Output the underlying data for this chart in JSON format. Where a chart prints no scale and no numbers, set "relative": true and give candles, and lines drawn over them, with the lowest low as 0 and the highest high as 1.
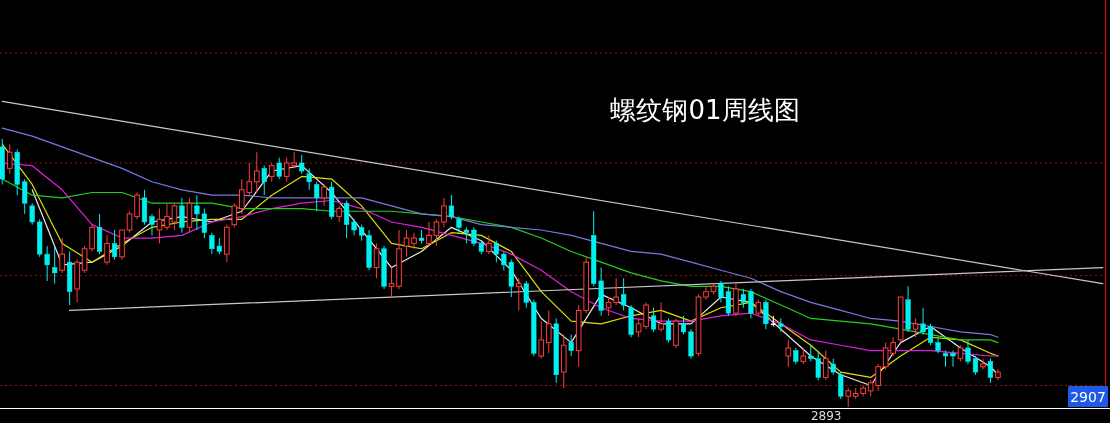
{
  "chart_data": {
    "type": "candlestick",
    "title": "螺纹钢01周线图",
    "relative": true,
    "categories": [
      null,
      null,
      null,
      null,
      null,
      null,
      null,
      null,
      null,
      null,
      null,
      null,
      null,
      null,
      null,
      null,
      null,
      null,
      null,
      null,
      null,
      null,
      null,
      null,
      null,
      null,
      null,
      null,
      null,
      null,
      null,
      null,
      null,
      null,
      null,
      null,
      null,
      null,
      null,
      null,
      null,
      null,
      null,
      null,
      null,
      null,
      null,
      null,
      null,
      null,
      null,
      null,
      null,
      null,
      null,
      null,
      null,
      null,
      null,
      null,
      null,
      null,
      null,
      null,
      null,
      null,
      null,
      null,
      null,
      null,
      null,
      null,
      null,
      null,
      null,
      null,
      null,
      null,
      null,
      null,
      null,
      null,
      null,
      null,
      null,
      null,
      null,
      null,
      null,
      null,
      null,
      null,
      null,
      null,
      null,
      null,
      null,
      null,
      null,
      null,
      null,
      null,
      null,
      null,
      null,
      null,
      null,
      null,
      null,
      null,
      null,
      null,
      null,
      null,
      null,
      null,
      null,
      null,
      null,
      null,
      null,
      null,
      null,
      null,
      null,
      null,
      null,
      null,
      null,
      null,
      null,
      null,
      null,
      null,
      null,
      null,
      null,
      null,
      null,
      null,
      null,
      null,
      null,
      null,
      null,
      null,
      null,
      null
    ],
    "ohlc": [
      [
        0.97,
        1.0,
        0.83,
        0.85
      ],
      [
        0.89,
        0.98,
        0.87,
        0.95
      ],
      [
        0.95,
        0.96,
        0.79,
        0.83
      ],
      [
        0.84,
        0.85,
        0.72,
        0.76
      ],
      [
        0.75,
        0.76,
        0.68,
        0.69
      ],
      [
        0.69,
        0.7,
        0.56,
        0.57
      ],
      [
        0.57,
        0.6,
        0.47,
        0.53
      ],
      [
        0.52,
        0.6,
        0.46,
        0.5
      ],
      [
        0.51,
        0.63,
        0.5,
        0.57
      ],
      [
        0.54,
        0.58,
        0.38,
        0.43
      ],
      [
        0.44,
        0.55,
        0.39,
        0.54
      ],
      [
        0.51,
        0.6,
        0.5,
        0.59
      ],
      [
        0.59,
        0.68,
        0.58,
        0.67
      ],
      [
        0.67,
        0.72,
        0.57,
        0.58
      ],
      [
        0.54,
        0.64,
        0.53,
        0.61
      ],
      [
        0.61,
        0.66,
        0.55,
        0.56
      ],
      [
        0.56,
        0.66,
        0.55,
        0.66
      ],
      [
        0.66,
        0.73,
        0.65,
        0.72
      ],
      [
        0.71,
        0.8,
        0.7,
        0.79
      ],
      [
        0.78,
        0.81,
        0.68,
        0.69
      ],
      [
        0.71,
        0.72,
        0.64,
        0.68
      ],
      [
        0.66,
        0.74,
        0.61,
        0.7
      ],
      [
        0.67,
        0.76,
        0.66,
        0.71
      ],
      [
        0.69,
        0.76,
        0.66,
        0.75
      ],
      [
        0.75,
        0.78,
        0.65,
        0.67
      ],
      [
        0.67,
        0.78,
        0.65,
        0.76
      ],
      [
        0.75,
        0.79,
        0.66,
        0.72
      ],
      [
        0.72,
        0.74,
        0.63,
        0.65
      ],
      [
        0.64,
        0.65,
        0.57,
        0.59
      ],
      [
        0.6,
        0.63,
        0.57,
        0.58
      ],
      [
        0.57,
        0.68,
        0.54,
        0.67
      ],
      [
        0.68,
        0.76,
        0.67,
        0.75
      ],
      [
        0.74,
        0.85,
        0.72,
        0.81
      ],
      [
        0.8,
        0.91,
        0.79,
        0.84
      ],
      [
        0.84,
        0.95,
        0.8,
        0.88
      ],
      [
        0.89,
        0.9,
        0.79,
        0.84
      ],
      [
        0.86,
        0.91,
        0.84,
        0.9
      ],
      [
        0.91,
        0.93,
        0.85,
        0.86
      ],
      [
        0.86,
        0.93,
        0.84,
        0.91
      ],
      [
        0.9,
        0.95,
        0.89,
        0.91
      ],
      [
        0.91,
        0.94,
        0.87,
        0.88
      ],
      [
        0.87,
        0.89,
        0.81,
        0.84
      ],
      [
        0.83,
        0.84,
        0.73,
        0.78
      ],
      [
        0.78,
        0.83,
        0.75,
        0.82
      ],
      [
        0.82,
        0.84,
        0.7,
        0.71
      ],
      [
        0.71,
        0.75,
        0.69,
        0.74
      ],
      [
        0.76,
        0.77,
        0.63,
        0.68
      ],
      [
        0.69,
        0.7,
        0.64,
        0.66
      ],
      [
        0.67,
        0.68,
        0.62,
        0.64
      ],
      [
        0.64,
        0.66,
        0.51,
        0.52
      ],
      [
        0.52,
        0.61,
        0.48,
        0.59
      ],
      [
        0.59,
        0.6,
        0.44,
        0.45
      ],
      [
        0.45,
        0.52,
        0.41,
        0.46
      ],
      [
        0.45,
        0.66,
        0.44,
        0.59
      ],
      [
        0.6,
        0.66,
        0.56,
        0.63
      ],
      [
        0.61,
        0.65,
        0.59,
        0.63
      ],
      [
        0.63,
        0.66,
        0.61,
        0.62
      ],
      [
        0.61,
        0.69,
        0.6,
        0.64
      ],
      [
        0.64,
        0.7,
        0.6,
        0.69
      ],
      [
        0.69,
        0.78,
        0.67,
        0.75
      ],
      [
        0.75,
        0.79,
        0.7,
        0.71
      ],
      [
        0.7,
        0.71,
        0.65,
        0.67
      ],
      [
        0.66,
        0.67,
        0.61,
        0.65
      ],
      [
        0.66,
        0.67,
        0.6,
        0.61
      ],
      [
        0.61,
        0.62,
        0.57,
        0.58
      ],
      [
        0.58,
        0.64,
        0.57,
        0.61
      ],
      [
        0.61,
        0.62,
        0.54,
        0.57
      ],
      [
        0.57,
        0.58,
        0.51,
        0.53
      ],
      [
        0.54,
        0.55,
        0.41,
        0.45
      ],
      [
        0.45,
        0.48,
        0.36,
        0.46
      ],
      [
        0.46,
        0.47,
        0.37,
        0.39
      ],
      [
        0.39,
        0.4,
        0.19,
        0.2
      ],
      [
        0.19,
        0.32,
        0.18,
        0.25
      ],
      [
        0.24,
        0.36,
        0.2,
        0.31
      ],
      [
        0.31,
        0.33,
        0.09,
        0.12
      ],
      [
        0.13,
        0.27,
        0.07,
        0.23
      ],
      [
        0.24,
        0.27,
        0.19,
        0.21
      ],
      [
        0.21,
        0.38,
        0.15,
        0.36
      ],
      [
        0.36,
        0.56,
        0.35,
        0.54
      ],
      [
        0.64,
        0.73,
        0.45,
        0.46
      ],
      [
        0.47,
        0.52,
        0.34,
        0.36
      ],
      [
        0.37,
        0.41,
        0.34,
        0.39
      ],
      [
        0.39,
        0.48,
        0.38,
        0.41
      ],
      [
        0.42,
        0.48,
        0.36,
        0.38
      ],
      [
        0.37,
        0.38,
        0.26,
        0.27
      ],
      [
        0.28,
        0.33,
        0.26,
        0.31
      ],
      [
        0.3,
        0.39,
        0.29,
        0.38
      ],
      [
        0.34,
        0.37,
        0.28,
        0.29
      ],
      [
        0.29,
        0.39,
        0.28,
        0.31
      ],
      [
        0.32,
        0.33,
        0.24,
        0.25
      ],
      [
        0.23,
        0.33,
        0.22,
        0.32
      ],
      [
        0.31,
        0.34,
        0.27,
        0.28
      ],
      [
        0.28,
        0.29,
        0.18,
        0.19
      ],
      [
        0.2,
        0.42,
        0.19,
        0.41
      ],
      [
        0.41,
        0.45,
        0.4,
        0.43
      ],
      [
        0.43,
        0.46,
        0.42,
        0.45
      ],
      [
        0.46,
        0.47,
        0.39,
        0.41
      ],
      [
        0.43,
        0.45,
        0.34,
        0.35
      ],
      [
        0.35,
        0.46,
        0.34,
        0.44
      ],
      [
        0.42,
        0.44,
        0.37,
        0.39
      ],
      [
        0.43,
        0.44,
        0.33,
        0.35
      ],
      [
        0.35,
        0.4,
        0.34,
        0.39
      ],
      [
        0.39,
        0.4,
        0.29,
        0.31
      ],
      [
        0.31,
        0.34,
        0.3,
        0.31
      ],
      [
        0.31,
        0.33,
        0.28,
        0.3
      ],
      [
        0.19,
        0.25,
        0.15,
        0.22
      ],
      [
        0.21,
        0.22,
        0.16,
        0.17
      ],
      [
        0.17,
        0.22,
        0.16,
        0.19
      ],
      [
        0.19,
        0.23,
        0.17,
        0.18
      ],
      [
        0.18,
        0.21,
        0.1,
        0.11
      ],
      [
        0.11,
        0.21,
        0.1,
        0.18
      ],
      [
        0.16,
        0.18,
        0.12,
        0.13
      ],
      [
        0.12,
        0.13,
        0.03,
        0.04
      ],
      [
        0.04,
        0.07,
        0,
        0.06
      ],
      [
        0.04,
        0.07,
        0.03,
        0.05
      ],
      [
        0.05,
        0.08,
        0.04,
        0.07
      ],
      [
        0.06,
        0.1,
        0.04,
        0.09
      ],
      [
        0.08,
        0.16,
        0.06,
        0.15
      ],
      [
        0.15,
        0.24,
        0.14,
        0.22
      ],
      [
        0.2,
        0.26,
        0.19,
        0.24
      ],
      [
        0.25,
        0.41,
        0.24,
        0.41
      ],
      [
        0.4,
        0.45,
        0.28,
        0.29
      ],
      [
        0.29,
        0.33,
        0.26,
        0.31
      ],
      [
        0.31,
        0.37,
        0.27,
        0.28
      ],
      [
        0.3,
        0.31,
        0.23,
        0.24
      ],
      [
        0.24,
        0.26,
        0.2,
        0.21
      ],
      [
        0.2,
        0.21,
        0.15,
        0.19
      ],
      [
        0.2,
        0.21,
        0.15,
        0.19
      ],
      [
        0.18,
        0.23,
        0.17,
        0.22
      ],
      [
        0.22,
        0.25,
        0.16,
        0.17
      ],
      [
        0.18,
        0.19,
        0.12,
        0.13
      ],
      [
        0.15,
        0.18,
        0.14,
        0.16
      ],
      [
        0.17,
        0.18,
        0.09,
        0.11
      ],
      [
        0.11,
        0.14,
        0.1,
        0.13
      ],
      null,
      null,
      null,
      null,
      null,
      null,
      null,
      null,
      null,
      null,
      null,
      null,
      null,
      null
    ],
    "series": [
      {
        "type": "line",
        "color": "#e8e8e8",
        "values": [
          null,
          null,
          null,
          null,
          0.81,
          null,
          null,
          null,
          0.53,
          null,
          null,
          null,
          0.54,
          null,
          null,
          null,
          0.6,
          null,
          null,
          null,
          0.69,
          null,
          null,
          null,
          0.71,
          null,
          null,
          null,
          0.69,
          null,
          null,
          null,
          0.73,
          null,
          null,
          null,
          0.88,
          null,
          null,
          null,
          0.9,
          null,
          null,
          null,
          0.8,
          null,
          null,
          null,
          0.66,
          null,
          null,
          null,
          0.52,
          null,
          null,
          null,
          0.58,
          null,
          null,
          null,
          0.67,
          null,
          null,
          null,
          0.62,
          null,
          null,
          null,
          0.51,
          null,
          null,
          null,
          0.33,
          null,
          null,
          null,
          0.24,
          null,
          null,
          null,
          0.42,
          null,
          null,
          null,
          0.37,
          null,
          null,
          null,
          0.31,
          null,
          null,
          null,
          0.31,
          null,
          null,
          null,
          0.41,
          null,
          null,
          null,
          0.39,
          null,
          null,
          null,
          0.29,
          null,
          null,
          null,
          0.19,
          null,
          null,
          null,
          0.12,
          null,
          null,
          null,
          0.08,
          null,
          null,
          null,
          0.24,
          null,
          null,
          null,
          0.3,
          null,
          null,
          null,
          0.22,
          null,
          null,
          null,
          0.15,
          0.12,
          null,
          null,
          null,
          null,
          null,
          null,
          null,
          null,
          null,
          null,
          null,
          null,
          null,
          null
        ]
      },
      {
        "type": "line",
        "color": "#e0e000",
        "values": [
          0.98,
          null,
          null,
          null,
          0.83,
          null,
          null,
          null,
          0.61,
          null,
          null,
          null,
          0.54,
          null,
          null,
          null,
          0.61,
          null,
          null,
          null,
          0.67,
          null,
          null,
          null,
          0.69,
          null,
          null,
          null,
          0.7,
          null,
          null,
          null,
          0.7,
          null,
          null,
          null,
          0.79,
          null,
          null,
          null,
          0.86,
          null,
          null,
          null,
          0.85,
          null,
          null,
          null,
          0.75,
          null,
          null,
          null,
          0.61,
          null,
          null,
          null,
          0.59,
          null,
          null,
          null,
          0.65,
          null,
          null,
          null,
          0.64,
          null,
          null,
          null,
          0.58,
          null,
          null,
          null,
          0.43,
          null,
          null,
          null,
          0.32,
          null,
          null,
          null,
          0.31,
          null,
          null,
          null,
          0.34,
          null,
          null,
          null,
          0.36,
          null,
          null,
          null,
          0.32,
          null,
          null,
          null,
          0.37,
          null,
          null,
          null,
          0.39,
          null,
          null,
          null,
          0.31,
          null,
          null,
          null,
          0.23,
          null,
          null,
          null,
          0.13,
          null,
          null,
          null,
          0.11,
          null,
          null,
          null,
          0.19,
          null,
          null,
          null,
          0.26,
          null,
          null,
          null,
          0.25,
          null,
          null,
          null,
          0.2,
          0.19,
          null,
          null,
          null,
          null,
          null,
          null,
          null,
          null,
          null,
          null,
          null,
          null,
          null,
          null
        ]
      },
      {
        "type": "line",
        "color": "#e020e0",
        "values": [
          0.91,
          null,
          null,
          null,
          0.9,
          null,
          null,
          null,
          0.81,
          null,
          null,
          null,
          0.68,
          null,
          null,
          null,
          0.63,
          null,
          null,
          null,
          0.63,
          null,
          null,
          null,
          0.64,
          null,
          null,
          null,
          0.69,
          null,
          null,
          null,
          0.71,
          null,
          null,
          null,
          0.74,
          null,
          null,
          null,
          0.76,
          null,
          null,
          null,
          0.77,
          null,
          null,
          null,
          0.74,
          null,
          null,
          null,
          0.69,
          null,
          null,
          null,
          0.67,
          null,
          null,
          null,
          0.64,
          null,
          null,
          null,
          0.61,
          null,
          null,
          null,
          0.57,
          null,
          null,
          null,
          0.51,
          null,
          null,
          null,
          0.43,
          null,
          null,
          null,
          0.37,
          null,
          null,
          null,
          0.33,
          null,
          null,
          null,
          0.32,
          null,
          null,
          null,
          0.32,
          null,
          null,
          null,
          0.34,
          null,
          null,
          null,
          0.35,
          null,
          null,
          null,
          0.31,
          null,
          null,
          null,
          0.25,
          null,
          null,
          null,
          0.23,
          null,
          null,
          null,
          0.21,
          null,
          null,
          null,
          0.21,
          null,
          null,
          null,
          0.21,
          null,
          null,
          null,
          0.2,
          null,
          null,
          null,
          0.19,
          0.19,
          null,
          null,
          null,
          null,
          null,
          null,
          null,
          null,
          null,
          null,
          null,
          null,
          null,
          null
        ]
      },
      {
        "type": "line",
        "color": "#20d020",
        "values": [
          0.85,
          null,
          null,
          null,
          0.79,
          null,
          null,
          null,
          0.78,
          null,
          null,
          null,
          0.8,
          null,
          null,
          null,
          0.8,
          null,
          null,
          null,
          0.76,
          null,
          null,
          null,
          0.76,
          null,
          null,
          null,
          0.76,
          null,
          null,
          null,
          0.74,
          null,
          null,
          null,
          0.74,
          null,
          null,
          null,
          0.74,
          null,
          null,
          null,
          0.73,
          null,
          null,
          null,
          0.73,
          null,
          null,
          null,
          0.73,
          null,
          null,
          null,
          0.72,
          null,
          null,
          null,
          0.71,
          null,
          null,
          null,
          0.69,
          null,
          null,
          null,
          0.67,
          null,
          null,
          null,
          0.63,
          null,
          null,
          null,
          0.58,
          null,
          null,
          null,
          0.54,
          null,
          null,
          null,
          0.5,
          null,
          null,
          null,
          0.47,
          null,
          null,
          null,
          0.45,
          null,
          null,
          null,
          0.45,
          null,
          null,
          null,
          0.43,
          null,
          null,
          null,
          0.38,
          null,
          null,
          null,
          0.33,
          null,
          null,
          null,
          0.32,
          null,
          null,
          null,
          0.31,
          null,
          null,
          null,
          0.29,
          null,
          null,
          null,
          0.27,
          null,
          null,
          null,
          0.25,
          null,
          null,
          null,
          0.25,
          0.24,
          null,
          null,
          null,
          null,
          null,
          null,
          null,
          null,
          null,
          null,
          null,
          null,
          null,
          null
        ]
      },
      {
        "type": "line",
        "color": "#7878e0",
        "values": [
          1.04,
          null,
          null,
          null,
          1.01,
          null,
          null,
          null,
          0.97,
          null,
          null,
          null,
          0.93,
          null,
          null,
          null,
          0.89,
          null,
          null,
          null,
          0.84,
          null,
          null,
          null,
          0.81,
          null,
          null,
          null,
          0.79,
          null,
          null,
          null,
          0.79,
          null,
          null,
          null,
          0.78,
          null,
          null,
          null,
          0.78,
          null,
          null,
          null,
          0.78,
          null,
          null,
          null,
          0.78,
          null,
          null,
          null,
          0.75,
          null,
          null,
          null,
          0.72,
          null,
          null,
          null,
          0.71,
          null,
          null,
          null,
          0.68,
          null,
          null,
          null,
          0.67,
          null,
          null,
          null,
          0.66,
          null,
          null,
          null,
          0.64,
          null,
          null,
          null,
          0.61,
          null,
          null,
          null,
          0.58,
          null,
          null,
          null,
          0.57,
          null,
          null,
          null,
          0.54,
          null,
          null,
          null,
          0.51,
          null,
          null,
          null,
          0.48,
          null,
          null,
          null,
          0.43,
          null,
          null,
          null,
          0.39,
          null,
          null,
          null,
          0.36,
          null,
          null,
          null,
          0.33,
          null,
          null,
          null,
          0.32,
          null,
          null,
          null,
          0.3,
          null,
          null,
          null,
          0.28,
          null,
          null,
          null,
          0.27,
          0.26,
          null,
          null,
          null,
          null,
          null,
          null,
          null,
          null,
          null,
          null,
          null,
          null,
          null,
          null
        ]
      },
      {
        "type": "line",
        "color": "#c8c8c8",
        "values": [
          1.14,
          null,
          null,
          null,
          null,
          null,
          null,
          null,
          null,
          null,
          null,
          null,
          null,
          null,
          null,
          null,
          null,
          null,
          null,
          null,
          null,
          null,
          null,
          null,
          null,
          null,
          null,
          null,
          null,
          null,
          null,
          null,
          null,
          null,
          null,
          null,
          null,
          null,
          null,
          null,
          null,
          null,
          null,
          null,
          null,
          null,
          null,
          null,
          null,
          null,
          null,
          null,
          null,
          null,
          null,
          null,
          null,
          null,
          null,
          null,
          null,
          null,
          null,
          null,
          null,
          null,
          null,
          null,
          null,
          null,
          null,
          null,
          null,
          null,
          null,
          null,
          null,
          null,
          null,
          null,
          null,
          null,
          null,
          null,
          null,
          null,
          null,
          null,
          null,
          null,
          null,
          null,
          null,
          null,
          null,
          null,
          null,
          null,
          null,
          null,
          null,
          null,
          null,
          null,
          null,
          null,
          null,
          null,
          null,
          null,
          null,
          null,
          null,
          null,
          null,
          null,
          null,
          null,
          null,
          null,
          null,
          null,
          null,
          null,
          null,
          null,
          null,
          null,
          null,
          null,
          null,
          null,
          null,
          null,
          null,
          null,
          null,
          null,
          null,
          null,
          null,
          null,
          null,
          null,
          null,
          null,
          null,
          0.46
        ]
      },
      {
        "type": "line",
        "color": "#c8c8c8",
        "values": [
          null,
          null,
          null,
          null,
          null,
          null,
          null,
          null,
          null,
          0.36,
          null,
          null,
          null,
          null,
          null,
          null,
          null,
          null,
          null,
          null,
          null,
          null,
          null,
          null,
          null,
          null,
          null,
          null,
          null,
          null,
          null,
          null,
          null,
          null,
          null,
          null,
          null,
          null,
          null,
          null,
          null,
          null,
          null,
          null,
          null,
          null,
          null,
          null,
          null,
          null,
          null,
          null,
          null,
          null,
          null,
          null,
          null,
          null,
          null,
          null,
          null,
          null,
          null,
          null,
          null,
          null,
          null,
          null,
          null,
          null,
          null,
          null,
          null,
          null,
          null,
          null,
          null,
          null,
          null,
          null,
          null,
          null,
          null,
          null,
          null,
          null,
          null,
          null,
          null,
          null,
          null,
          null,
          null,
          null,
          null,
          null,
          null,
          null,
          null,
          null,
          null,
          null,
          null,
          null,
          null,
          null,
          null,
          null,
          null,
          null,
          null,
          null,
          null,
          null,
          null,
          null,
          null,
          null,
          null,
          null,
          null,
          null,
          null,
          null,
          null,
          null,
          null,
          null,
          null,
          null,
          null,
          null,
          null,
          null,
          null,
          null,
          null,
          null,
          null,
          null,
          null,
          null,
          null,
          null,
          null,
          null,
          null,
          0.52
        ]
      }
    ],
    "ref_lines": [
      {
        "axis": "y",
        "value": 1.32,
        "color": "#a01010",
        "line_style": "dotted"
      },
      {
        "axis": "y",
        "value": 0.91,
        "color": "#a01010",
        "line_style": "dotted"
      },
      {
        "axis": "y",
        "value": 0.49,
        "color": "#a01010",
        "line_style": "dotted"
      },
      {
        "axis": "y",
        "value": 0.08,
        "color": "#a01010",
        "line_style": "dotted"
      }
    ],
    "annotations": [
      "2893",
      "2907"
    ]
  }
}
